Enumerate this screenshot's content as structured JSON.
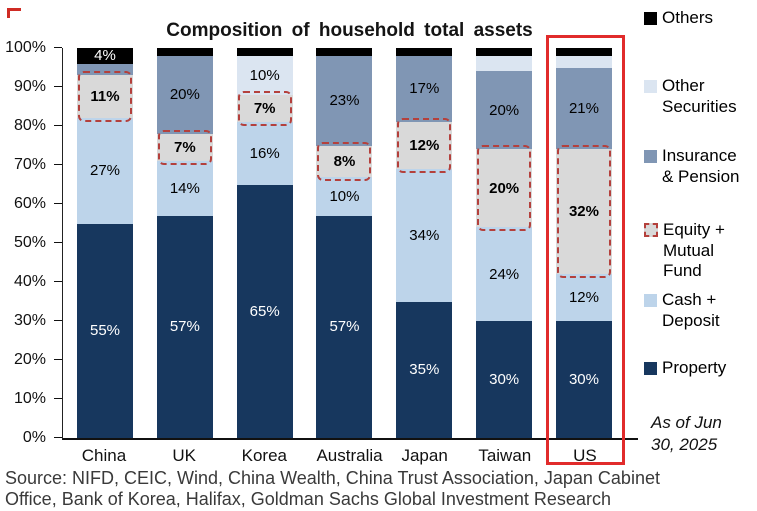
{
  "colors": {
    "dashed_outline_red": "#b4403c",
    "highlight_box_red": "#e12b2b"
  },
  "chart_data": {
    "type": "bar",
    "stacked": true,
    "percent": true,
    "title": "Composition of household total assets",
    "categories": [
      "China",
      "UK",
      "Korea",
      "Australia",
      "Japan",
      "Taiwan",
      "US"
    ],
    "yticks": [
      "0%",
      "10%",
      "20%",
      "30%",
      "40%",
      "50%",
      "60%",
      "70%",
      "80%",
      "90%",
      "100%"
    ],
    "ylim": [
      0,
      100
    ],
    "grid": false,
    "legend_position": "right",
    "highlight_column": "US",
    "series": [
      {
        "name": "Property",
        "key": "property",
        "color": "#17375e",
        "label_color": "#ffffff",
        "values": [
          55,
          57,
          65,
          57,
          35,
          30,
          30
        ],
        "labels": [
          "55%",
          "57%",
          "65%",
          "57%",
          "35%",
          "30%",
          "30%"
        ]
      },
      {
        "name": "Cash + Deposit",
        "key": "cash_deposit",
        "color": "#bdd4ea",
        "label_color": "#000000",
        "values": [
          27,
          14,
          16,
          10,
          34,
          24,
          12
        ],
        "labels": [
          "27%",
          "14%",
          "16%",
          "10%",
          "34%",
          "24%",
          "12%"
        ]
      },
      {
        "name": "Equity + Mutual Fund",
        "key": "equity_mutual",
        "color": "#d9d9d9",
        "label_color": "#000000",
        "bold_labels": true,
        "dashed_outline": true,
        "values": [
          11,
          7,
          7,
          8,
          12,
          20,
          32
        ],
        "labels": [
          "11%",
          "7%",
          "7%",
          "8%",
          "12%",
          "20%",
          "32%"
        ]
      },
      {
        "name": "Insurance & Pension",
        "key": "insurance_pension",
        "color": "#8096b4",
        "label_color": "#000000",
        "values": [
          3,
          20,
          0,
          23,
          17,
          20,
          21
        ],
        "labels": [
          null,
          "20%",
          null,
          "23%",
          "17%",
          "20%",
          "21%"
        ]
      },
      {
        "name": "Other Securities",
        "key": "other_securities",
        "color": "#dbe5f1",
        "label_color": "#000000",
        "values": [
          0,
          0,
          10,
          0,
          0,
          4,
          3
        ],
        "labels": [
          null,
          null,
          "10%",
          null,
          null,
          null,
          null
        ]
      },
      {
        "name": "Others",
        "key": "others",
        "color": "#000000",
        "label_color": "#ffffff",
        "values": [
          4,
          2,
          2,
          2,
          2,
          2,
          2
        ],
        "labels": [
          "4%",
          null,
          null,
          null,
          null,
          null,
          null
        ]
      }
    ]
  },
  "legend": {
    "items": [
      {
        "key": "others",
        "label": "Others"
      },
      {
        "key": "other_securities",
        "label": "Other Securities"
      },
      {
        "key": "insurance_pension",
        "label": "Insurance & Pension"
      },
      {
        "key": "equity_mutual",
        "label": "Equity + Mutual Fund",
        "dashed": true
      },
      {
        "key": "cash_deposit",
        "label": "Cash + Deposit"
      },
      {
        "key": "property",
        "label": "Property"
      }
    ],
    "as_of_lines": [
      "As of Jun",
      "30, 2025"
    ]
  },
  "footer": {
    "lines": [
      "Source: NIFD, CEIC, Wind, China Wealth, China Trust Association, Japan Cabinet",
      "Office, Bank of Korea, Halifax, Goldman Sachs Global Investment Research"
    ]
  }
}
